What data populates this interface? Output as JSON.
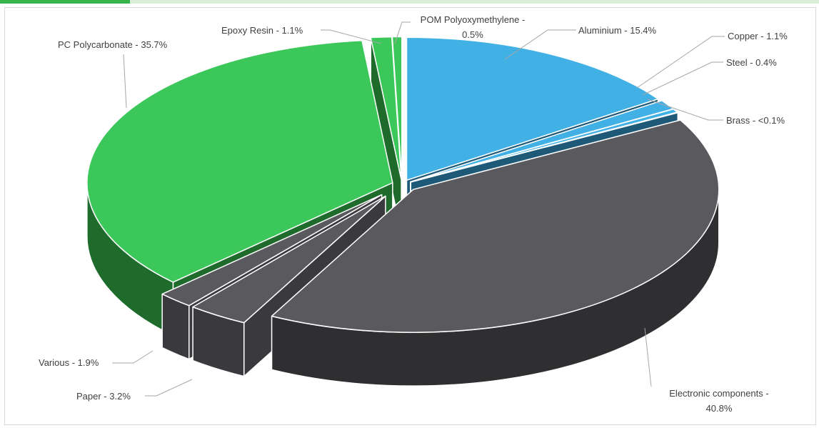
{
  "chart_data": {
    "type": "pie",
    "title": "",
    "three_d": true,
    "exploded": true,
    "slices": [
      {
        "name": "Aluminium",
        "value": 15.4,
        "label": "Aluminium - 15.4%",
        "color": "#41b0e4"
      },
      {
        "name": "Copper",
        "value": 1.1,
        "label": "Copper - 1.1%",
        "color": "#41b0e4"
      },
      {
        "name": "Steel",
        "value": 0.4,
        "label": "Steel - 0.4%",
        "color": "#41b0e4"
      },
      {
        "name": "Brass",
        "value": 0.05,
        "label": "Brass - <0.1%",
        "color": "#1f5f7a"
      },
      {
        "name": "Electronic components",
        "value": 40.8,
        "label": "Electronic components - 40.8%",
        "color": "#5a5a5e"
      },
      {
        "name": "Paper",
        "value": 3.2,
        "label": "Paper - 3.2%",
        "color": "#5a5a5e"
      },
      {
        "name": "Various",
        "value": 1.9,
        "label": "Various - 1.9%",
        "color": "#5a5a5e"
      },
      {
        "name": "PC Polycarbonate",
        "value": 35.7,
        "label": "PC Polycarbonate - 35.7%",
        "color": "#3cc75a"
      },
      {
        "name": "Epoxy Resin",
        "value": 1.1,
        "label": "Epoxy Resin - 1.1%",
        "color": "#3cc75a"
      },
      {
        "name": "POM Polyoxymethylene",
        "value": 0.5,
        "label": "POM Polyoxymethylene - 0.5%",
        "color": "#3cc75a"
      }
    ]
  },
  "colors": {
    "metal_top": "#41b0e4",
    "metal_side": "#1e5a78",
    "electronic_top": "#5f5f63",
    "electronic_side": "#2f2f32",
    "plastic_top": "#3cc75a",
    "plastic_side": "#1e6b2c",
    "accent_bar": "#36b64a"
  }
}
